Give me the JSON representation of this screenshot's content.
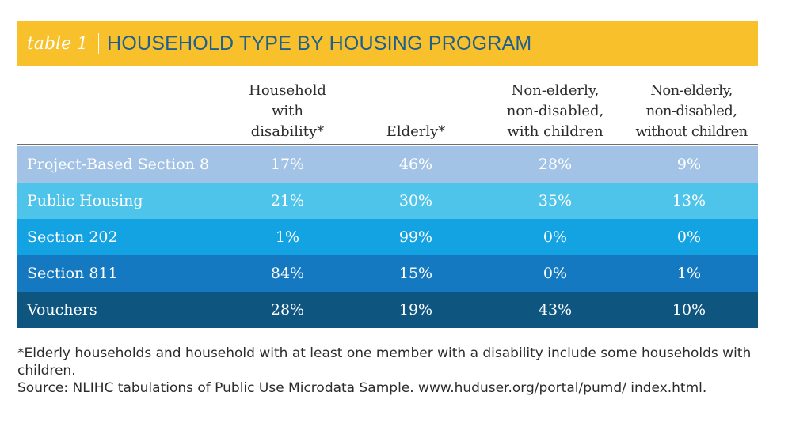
{
  "title": {
    "label": "table 1",
    "text": "HOUSEHOLD TYPE BY HOUSING PROGRAM"
  },
  "columns": [
    "Household\nwith\ndisability*",
    "Elderly*",
    "Non-elderly,\nnon-disabled,\nwith children",
    "Non-elderly,\nnon-disabled,\nwithout children"
  ],
  "rows": [
    {
      "label": "Project-Based Section 8",
      "values": [
        "17%",
        "46%",
        "28%",
        "9%"
      ],
      "color": "#a3c3e6"
    },
    {
      "label": "Public Housing",
      "values": [
        "21%",
        "30%",
        "35%",
        "13%"
      ],
      "color": "#4fc4ea"
    },
    {
      "label": "Section 202",
      "values": [
        "1%",
        "99%",
        "0%",
        "0%"
      ],
      "color": "#14a3e2"
    },
    {
      "label": "Section 811",
      "values": [
        "84%",
        "15%",
        "0%",
        "1%"
      ],
      "color": "#1479c0"
    },
    {
      "label": "Vouchers",
      "values": [
        "28%",
        "19%",
        "43%",
        "10%"
      ],
      "color": "#0e5580"
    }
  ],
  "footnote": "*Elderly households and household with at least one member with a disability include some households with children.",
  "source": "Source: NLIHC tabulations of Public Use Microdata Sample. www.huduser.org/portal/pumd/ index.html."
}
